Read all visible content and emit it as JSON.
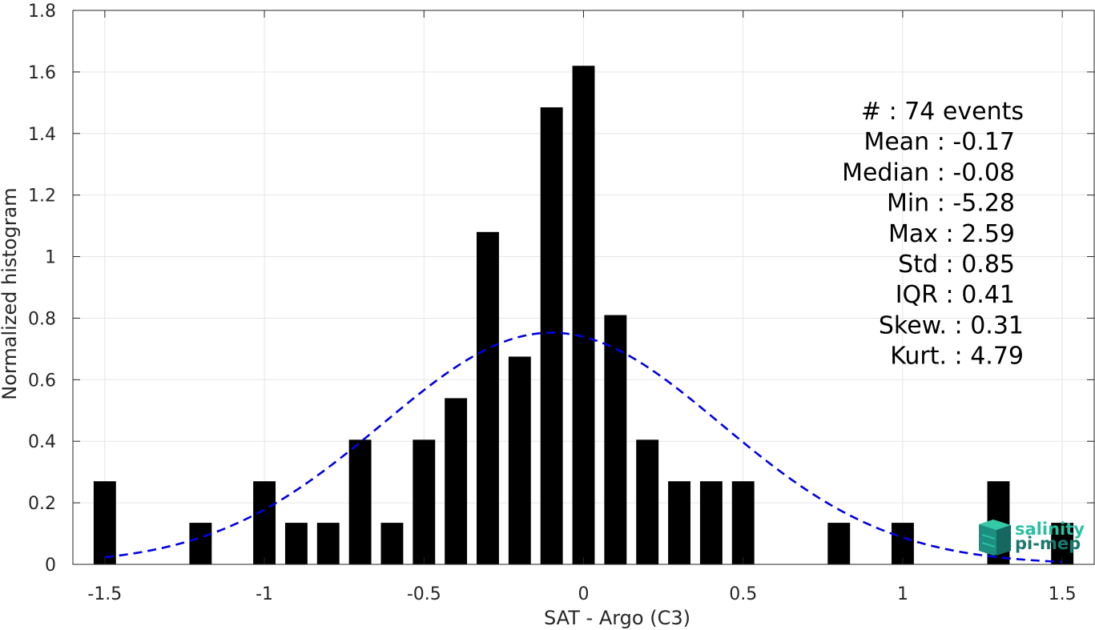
{
  "chart_data": {
    "type": "bar",
    "xlabel": "SAT - Argo (C3)",
    "ylabel": "Normalized histogram",
    "xlim": [
      -1.6,
      1.6
    ],
    "ylim": [
      0,
      1.8
    ],
    "grid": true,
    "x_ticks": [
      -1.5,
      -1,
      -0.5,
      0,
      0.5,
      1,
      1.5
    ],
    "x_tick_labels": [
      "-1.5",
      "-1",
      "-0.5",
      "0",
      "0.5",
      "1",
      "1.5"
    ],
    "y_ticks": [
      0,
      0.2,
      0.4,
      0.6,
      0.8,
      1,
      1.2,
      1.4,
      1.6,
      1.8
    ],
    "y_tick_labels": [
      "0",
      "0.2",
      "0.4",
      "0.6",
      "0.8",
      "1",
      "1.2",
      "1.4",
      "1.6",
      "1.8"
    ],
    "bar_color": "#000000",
    "bar_width": 0.07,
    "bars": [
      {
        "x": -1.5,
        "y": 0.27
      },
      {
        "x": -1.2,
        "y": 0.135
      },
      {
        "x": -1.0,
        "y": 0.27
      },
      {
        "x": -0.9,
        "y": 0.135
      },
      {
        "x": -0.8,
        "y": 0.135
      },
      {
        "x": -0.7,
        "y": 0.405
      },
      {
        "x": -0.6,
        "y": 0.135
      },
      {
        "x": -0.5,
        "y": 0.405
      },
      {
        "x": -0.4,
        "y": 0.54
      },
      {
        "x": -0.3,
        "y": 1.08
      },
      {
        "x": -0.2,
        "y": 0.675
      },
      {
        "x": -0.1,
        "y": 1.485
      },
      {
        "x": 0.0,
        "y": 1.62
      },
      {
        "x": 0.1,
        "y": 0.81
      },
      {
        "x": 0.2,
        "y": 0.405
      },
      {
        "x": 0.3,
        "y": 0.27
      },
      {
        "x": 0.4,
        "y": 0.27
      },
      {
        "x": 0.5,
        "y": 0.27
      },
      {
        "x": 0.8,
        "y": 0.135
      },
      {
        "x": 1.0,
        "y": 0.135
      },
      {
        "x": 1.3,
        "y": 0.27
      },
      {
        "x": 1.5,
        "y": 0.135
      }
    ],
    "fit_curve": {
      "style": "dashed",
      "color": "#0000e6",
      "distribution": "normal",
      "mean": -0.1,
      "std": 0.53,
      "x_range": [
        -1.5,
        1.5
      ]
    }
  },
  "stats": {
    "lines": [
      "#  : 74 events",
      "Mean : -0.17",
      "Median : -0.08",
      "Min : -5.28",
      "Max : 2.59",
      "Std : 0.85",
      "IQR : 0.41",
      "Skew. : 0.31",
      "Kurt. : 4.79"
    ]
  },
  "logo": {
    "line1": "salinity",
    "line2": "pi-mep",
    "colors": {
      "top": "#2bbfa0",
      "bottom": "#1a7a70"
    }
  }
}
